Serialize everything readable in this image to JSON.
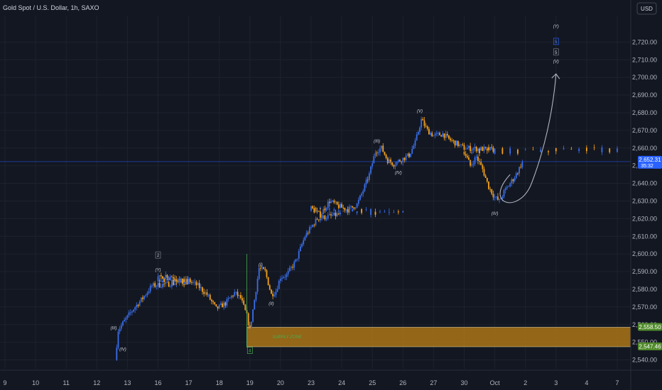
{
  "header": {
    "title": "Gold Spot / U.S. Dollar, 1h, SAXO"
  },
  "currency_button": {
    "label": "USD"
  },
  "colors": {
    "background": "#131722",
    "up_candle": "#3a6ee8",
    "down_candle": "#f7a21b",
    "supply_zone": "#c58515",
    "zone_label": "#4caf50",
    "price_tag": "#2962ff",
    "zone_tag": "#4f8a2a",
    "wave_green": "#4caf50",
    "wave_blue": "#2962ff"
  },
  "chart_data": {
    "type": "candlestick",
    "title": "Gold Spot / U.S. Dollar, 1h, SAXO",
    "currency": "USD",
    "ylim": [
      2535,
      2735
    ],
    "y_ticks": [
      "2,720.00",
      "2,710.00",
      "2,700.00",
      "2,690.00",
      "2,680.00",
      "2,670.00",
      "2,660.00",
      "2,650.00",
      "2,640.00",
      "2,630.00",
      "2,620.00",
      "2,610.00",
      "2,600.00",
      "2,590.00",
      "2,580.00",
      "2,570.00",
      "2,560.00",
      "2,550.00",
      "2,540.00"
    ],
    "x_ticks": [
      "9",
      "10",
      "11",
      "12",
      "13",
      "16",
      "17",
      "18",
      "19",
      "20",
      "23",
      "24",
      "25",
      "26",
      "27",
      "30",
      "Oct",
      "2",
      "3",
      "4",
      "7"
    ],
    "path_points": [
      [
        12.6,
        2540
      ],
      [
        12.7,
        2557
      ],
      [
        12.9,
        2562
      ],
      [
        13.2,
        2569
      ],
      [
        13.5,
        2575
      ],
      [
        13.8,
        2582
      ],
      [
        16.0,
        2586
      ],
      [
        16.2,
        2588
      ],
      [
        16.5,
        2587
      ],
      [
        16.8,
        2584
      ],
      [
        17.0,
        2585
      ],
      [
        17.3,
        2582
      ],
      [
        17.6,
        2577
      ],
      [
        17.9,
        2569
      ],
      [
        18.2,
        2572
      ],
      [
        18.5,
        2578
      ],
      [
        18.7,
        2575
      ],
      [
        18.9,
        2565
      ],
      [
        19.0,
        2557
      ],
      [
        19.15,
        2574
      ],
      [
        19.3,
        2592
      ],
      [
        19.5,
        2590
      ],
      [
        19.7,
        2577
      ],
      [
        19.85,
        2579
      ],
      [
        20.0,
        2587
      ],
      [
        20.2,
        2588
      ],
      [
        20.5,
        2596
      ],
      [
        20.8,
        2610
      ],
      [
        21.2,
        2620
      ],
      [
        23.0,
        2626
      ],
      [
        23.3,
        2622
      ],
      [
        23.6,
        2630
      ],
      [
        23.9,
        2627
      ],
      [
        24.2,
        2625
      ],
      [
        24.5,
        2628
      ],
      [
        24.7,
        2636
      ],
      [
        24.9,
        2645
      ],
      [
        25.1,
        2658
      ],
      [
        25.3,
        2660
      ],
      [
        25.5,
        2653
      ],
      [
        25.7,
        2651
      ],
      [
        26.0,
        2654
      ],
      [
        26.2,
        2656
      ],
      [
        26.4,
        2663
      ],
      [
        26.6,
        2676
      ],
      [
        26.8,
        2670
      ],
      [
        27.0,
        2667
      ],
      [
        27.3,
        2668
      ],
      [
        27.5,
        2665
      ],
      [
        27.7,
        2663
      ],
      [
        28.0,
        2660
      ],
      [
        30.0,
        2658
      ],
      [
        30.2,
        2650
      ],
      [
        30.4,
        2655
      ],
      [
        30.6,
        2648
      ],
      [
        30.8,
        2638
      ],
      [
        31.0,
        2632
      ],
      [
        31.15,
        2630
      ],
      [
        31.3,
        2635
      ],
      [
        31.5,
        2640
      ],
      [
        31.7,
        2645
      ],
      [
        31.9,
        2652
      ]
    ],
    "last_price": {
      "value": 2652.31,
      "label": "2,652.31",
      "countdown": "35:32"
    },
    "supply_zone": {
      "label": "SUPPLY ZONE",
      "upper": 2558.5,
      "lower": 2547.46,
      "upper_label": "2,558.50",
      "lower_label": "2,547.46"
    },
    "wave_labels": [
      {
        "text": "(III)",
        "x": 12.55,
        "y": 2558
      },
      {
        "text": "(IV)",
        "x": 12.85,
        "y": 2546
      },
      {
        "text": "2",
        "x": 16.0,
        "y": 2599,
        "boxed": true
      },
      {
        "text": "(Y)",
        "x": 16.0,
        "y": 2591
      },
      {
        "text": "(I)",
        "x": 19.35,
        "y": 2594
      },
      {
        "text": "(II)",
        "x": 19.7,
        "y": 2572
      },
      {
        "text": "4",
        "x": 19.0,
        "y": 2545,
        "boxed": true,
        "color": "green"
      },
      {
        "text": "(III)",
        "x": 25.15,
        "y": 2664
      },
      {
        "text": "(IV)",
        "x": 25.85,
        "y": 2646
      },
      {
        "text": "(V)",
        "x": 26.55,
        "y": 2681
      },
      {
        "text": "(IV)",
        "x": 31.0,
        "y": 2623
      },
      {
        "text": "(Y)",
        "x": 33.0,
        "y": 2729,
        "color": "green"
      },
      {
        "text": "5",
        "x": 33.0,
        "y": 2720,
        "boxed": true,
        "color": "blue"
      },
      {
        "text": "5",
        "x": 33.0,
        "y": 2714,
        "boxed": true
      },
      {
        "text": "(V)",
        "x": 33.0,
        "y": 2709
      }
    ],
    "annotations": [
      {
        "type": "curved-arrow",
        "from": [
          29.7,
          2645
        ],
        "via": [
          31.0,
          2627
        ],
        "to": [
          33.0,
          2702
        ]
      }
    ]
  }
}
